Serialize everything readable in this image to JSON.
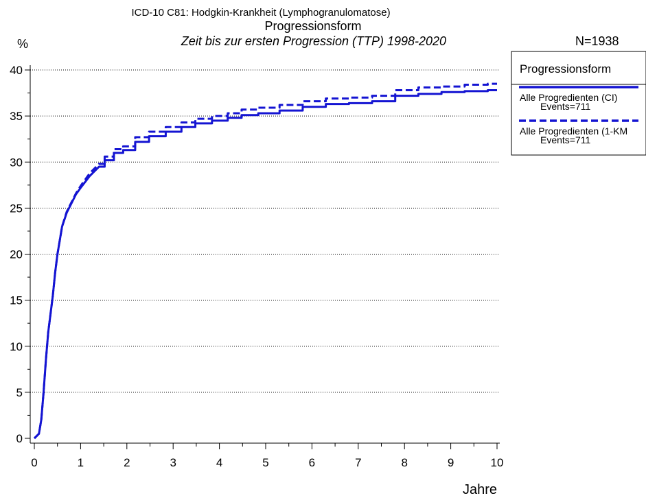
{
  "header": {
    "title_line1": "ICD-10 C81: Hodgkin-Krankheit (Lymphogranulomatose)",
    "title_line2": "Progressionsform",
    "subtitle": "Zeit bis zur ersten Progression (TTP) 1998-2020",
    "n_label": "N=1938"
  },
  "legend": {
    "title": "Progressionsform",
    "entries": [
      {
        "label": "Alle Progredienten (CI)",
        "events": "Events=711",
        "style": "solid"
      },
      {
        "label": "Alle Progredienten (1-KM",
        "events": "Events=711",
        "style": "dashed"
      }
    ]
  },
  "colors": {
    "series": "#1414d2",
    "grid": "#000000"
  },
  "chart_data": {
    "type": "line",
    "title": "ICD-10 C81: Hodgkin-Krankheit (Lymphogranulomatose)",
    "subtitle": "Progressionsform — Zeit bis zur ersten Progression (TTP) 1998-2020",
    "xlabel": "Jahre",
    "ylabel": "%",
    "xlim": [
      0,
      10
    ],
    "ylim": [
      0,
      40
    ],
    "xticks": [
      0,
      1,
      2,
      3,
      4,
      5,
      6,
      7,
      8,
      9,
      10
    ],
    "yticks": [
      0,
      5,
      10,
      15,
      20,
      25,
      30,
      35,
      40
    ],
    "grid": "horizontal dotted",
    "legend_position": "right",
    "series": [
      {
        "name": "Alle Progredienten (CI)",
        "style": "solid",
        "x": [
          0,
          0.1,
          0.15,
          0.2,
          0.25,
          0.3,
          0.35,
          0.4,
          0.45,
          0.5,
          0.6,
          0.7,
          0.8,
          0.9,
          1.0,
          1.2,
          1.4,
          1.6,
          1.8,
          2.0,
          2.3,
          2.6,
          3.0,
          3.3,
          3.6,
          4.0,
          4.3,
          4.6,
          5.0,
          5.5,
          6.0,
          6.5,
          7.0,
          7.5,
          8.0,
          8.5,
          9.0,
          9.5,
          10.0
        ],
        "y": [
          0,
          0.5,
          2,
          5,
          8.5,
          11.5,
          13.5,
          15.5,
          18,
          20,
          23,
          24.5,
          25.5,
          26.5,
          27.2,
          28.5,
          29.5,
          30.2,
          31,
          31.3,
          32.2,
          32.8,
          33.3,
          33.8,
          34.2,
          34.5,
          34.8,
          35.1,
          35.3,
          35.6,
          36.0,
          36.3,
          36.4,
          36.6,
          37.2,
          37.4,
          37.6,
          37.7,
          37.8
        ]
      },
      {
        "name": "Alle Progredienten (1-KM",
        "style": "dashed",
        "x": [
          0,
          0.1,
          0.15,
          0.2,
          0.25,
          0.3,
          0.35,
          0.4,
          0.45,
          0.5,
          0.6,
          0.7,
          0.8,
          0.9,
          1.0,
          1.2,
          1.4,
          1.6,
          1.8,
          2.0,
          2.3,
          2.6,
          3.0,
          3.3,
          3.6,
          4.0,
          4.3,
          4.6,
          5.0,
          5.5,
          6.0,
          6.5,
          7.0,
          7.5,
          8.0,
          8.5,
          9.0,
          9.5,
          10.0
        ],
        "y": [
          0,
          0.5,
          2,
          5,
          8.5,
          11.5,
          13.5,
          15.5,
          18,
          20,
          23,
          24.6,
          25.6,
          26.6,
          27.4,
          28.8,
          29.8,
          30.6,
          31.4,
          31.7,
          32.7,
          33.3,
          33.8,
          34.3,
          34.7,
          35.0,
          35.3,
          35.7,
          35.9,
          36.2,
          36.6,
          36.9,
          37.0,
          37.2,
          37.8,
          38.1,
          38.2,
          38.4,
          38.5
        ]
      }
    ]
  }
}
